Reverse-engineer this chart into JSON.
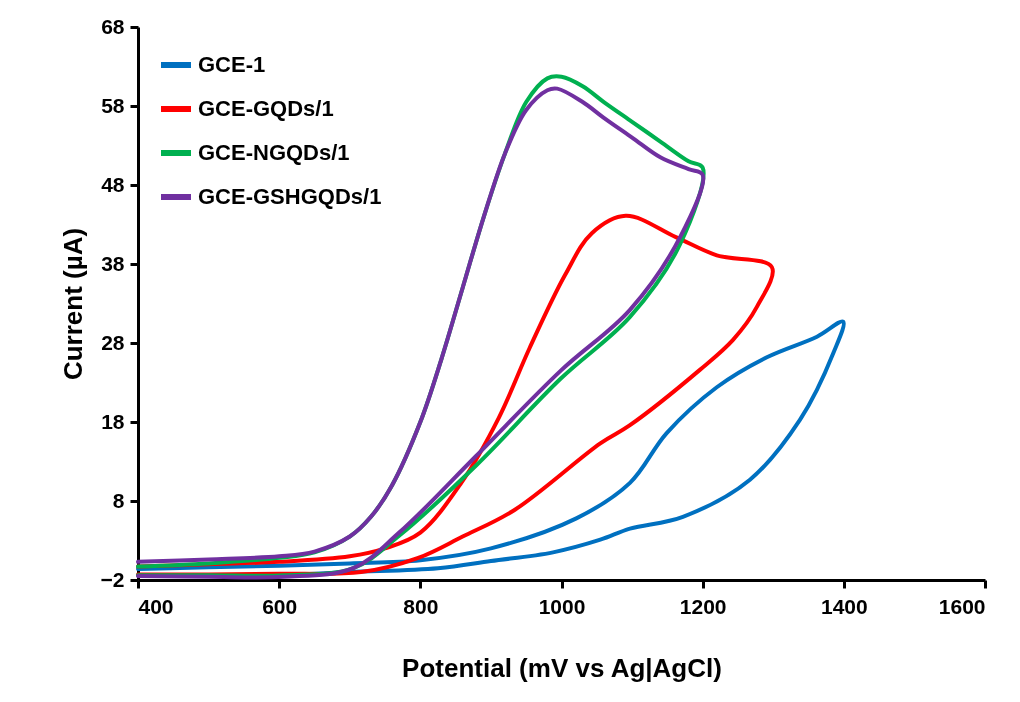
{
  "chart_data": {
    "type": "line",
    "xlabel": "Potential (mV vs Ag|AgCl)",
    "ylabel": "Current (µA)",
    "xlim": [
      400,
      1600
    ],
    "xticks": [
      400,
      600,
      800,
      1000,
      1200,
      1400,
      1600
    ],
    "ylim": [
      -2,
      68
    ],
    "yticks": [
      -2,
      8,
      18,
      28,
      38,
      48,
      58,
      68
    ],
    "grid": false,
    "legend": "top left",
    "marker": "none",
    "line_style": "solid",
    "series": [
      {
        "name": "GCE-1",
        "color": "#0070c0",
        "x": [
          400,
          500,
          600,
          700,
          800,
          900,
          1021,
          1097,
          1149,
          1220,
          1291,
          1362,
          1399,
          1385,
          1338,
          1267,
          1172,
          1097,
          1055,
          988,
          900,
          825,
          700,
          607
        ],
        "values": [
          -0.6,
          -0.4,
          -0.2,
          0.1,
          0.5,
          2.0,
          5.8,
          10.3,
          16.6,
          22.4,
          26.2,
          28.8,
          30.7,
          26.7,
          18.3,
          10.7,
          6.0,
          4.5,
          3.1,
          1.5,
          0.4,
          -0.5,
          -1.0,
          -1.4
        ]
      },
      {
        "name": "GCE-GQDs/1",
        "color": "#ff0000",
        "x": [
          400,
          500,
          600,
          700,
          750,
          800,
          858,
          911,
          955,
          1005,
          1043,
          1091,
          1162,
          1220,
          1298,
          1277,
          1243,
          1196,
          1097,
          1055,
          934,
          860,
          797,
          716,
          600,
          500,
          400
        ],
        "values": [
          -0.3,
          0,
          0.3,
          1.0,
          2.0,
          4.0,
          10.3,
          18.5,
          27.4,
          36.6,
          41.9,
          44.1,
          41.4,
          39.1,
          37.6,
          32.6,
          28.4,
          24.6,
          17.6,
          15.3,
          6.9,
          3.5,
          0.8,
          -1.0,
          -1.2,
          -1.3,
          -1.3
        ]
      },
      {
        "name": "GCE-NGQDs/1",
        "color": "#00b050",
        "x": [
          400,
          500,
          600,
          650,
          700,
          730,
          760,
          800,
          830,
          860,
          890,
          920,
          950,
          980,
          1000,
          1030,
          1060,
          1100,
          1140,
          1180,
          1200,
          1168,
          1097,
          999,
          879,
          770,
          705,
          607,
          500,
          400
        ],
        "values": [
          -0.3,
          0.1,
          0.8,
          1.5,
          3.5,
          6,
          10,
          18,
          26,
          35,
          44,
          52,
          58.5,
          61.5,
          61.7,
          60.5,
          58.5,
          56,
          53.5,
          51,
          50.2,
          40.5,
          31.3,
          23.5,
          12.5,
          3.6,
          -0.5,
          -1.4,
          -1.4,
          -1.4
        ]
      },
      {
        "name": "GCE-GSHGQDs/1",
        "color": "#7030a0",
        "x": [
          400,
          500,
          600,
          650,
          700,
          730,
          760,
          800,
          830,
          860,
          890,
          920,
          950,
          980,
          994,
          1030,
          1060,
          1100,
          1140,
          1180,
          1200,
          1168,
          1097,
          999,
          879,
          770,
          705,
          607,
          500,
          400
        ],
        "values": [
          0.3,
          0.6,
          1.0,
          1.6,
          3.5,
          6,
          10,
          18,
          26,
          35,
          44,
          52,
          57.5,
          60,
          60.2,
          58.5,
          56.5,
          54,
          51.5,
          50,
          49.3,
          41.4,
          32.2,
          24.5,
          13.7,
          4.0,
          -0.5,
          -1.6,
          -1.6,
          -1.5
        ]
      }
    ]
  }
}
